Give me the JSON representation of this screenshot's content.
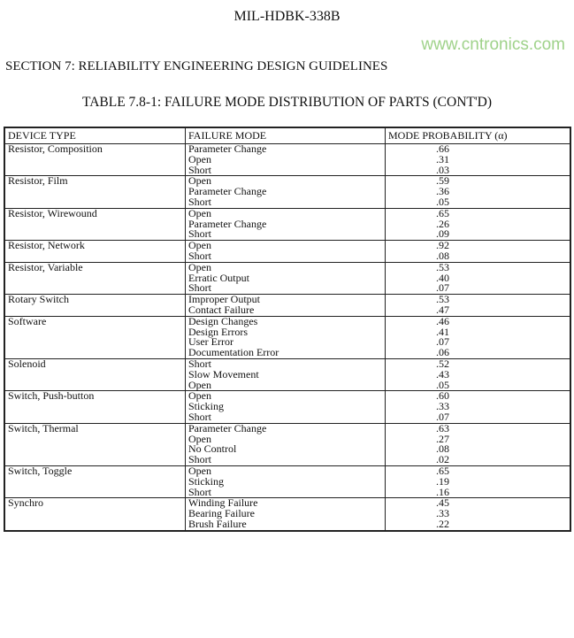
{
  "document_header": "MIL-HDBK-338B",
  "section_title": "SECTION 7:  RELIABILITY ENGINEERING DESIGN GUIDELINES",
  "table_title": "TABLE 7.8-1:  FAILURE MODE DISTRIBUTION OF PARTS (CONT'D)",
  "columns": [
    "DEVICE TYPE",
    "FAILURE MODE",
    "MODE PROBABILITY (α)"
  ],
  "rows": [
    {
      "device": "Resistor, Composition",
      "modes": [
        "Parameter Change",
        "Open",
        "Short"
      ],
      "probs": [
        ".66",
        ".31",
        ".03"
      ]
    },
    {
      "device": "Resistor, Film",
      "modes": [
        "Open",
        "Parameter Change",
        "Short"
      ],
      "probs": [
        ".59",
        ".36",
        ".05"
      ]
    },
    {
      "device": "Resistor, Wirewound",
      "modes": [
        "Open",
        "Parameter Change",
        "Short"
      ],
      "probs": [
        ".65",
        ".26",
        ".09"
      ]
    },
    {
      "device": "Resistor, Network",
      "modes": [
        "Open",
        "Short"
      ],
      "probs": [
        ".92",
        ".08"
      ]
    },
    {
      "device": "Resistor, Variable",
      "modes": [
        "Open",
        "Erratic Output",
        "Short"
      ],
      "probs": [
        ".53",
        ".40",
        ".07"
      ]
    },
    {
      "device": "Rotary Switch",
      "modes": [
        "Improper Output",
        "Contact Failure"
      ],
      "probs": [
        ".53",
        ".47"
      ]
    },
    {
      "device": "Software",
      "modes": [
        "Design Changes",
        "Design Errors",
        "User Error",
        "Documentation Error"
      ],
      "probs": [
        ".46",
        ".41",
        ".07",
        ".06"
      ]
    },
    {
      "device": "Solenoid",
      "modes": [
        "Short",
        "Slow Movement",
        "Open"
      ],
      "probs": [
        ".52",
        ".43",
        ".05"
      ]
    },
    {
      "device": "Switch, Push-button",
      "modes": [
        "Open",
        "Sticking",
        "Short"
      ],
      "probs": [
        ".60",
        ".33",
        ".07"
      ]
    },
    {
      "device": "Switch, Thermal",
      "modes": [
        "Parameter Change",
        "Open",
        "No Control",
        "Short"
      ],
      "probs": [
        ".63",
        ".27",
        ".08",
        ".02"
      ]
    },
    {
      "device": "Switch, Toggle",
      "modes": [
        "Open",
        "Sticking",
        "Short"
      ],
      "probs": [
        ".65",
        ".19",
        ".16"
      ]
    },
    {
      "device": "Synchro",
      "modes": [
        "Winding Failure",
        "Bearing Failure",
        "Brush Failure"
      ],
      "probs": [
        ".45",
        ".33",
        ".22"
      ]
    }
  ],
  "watermark": "www.cntronics.com"
}
